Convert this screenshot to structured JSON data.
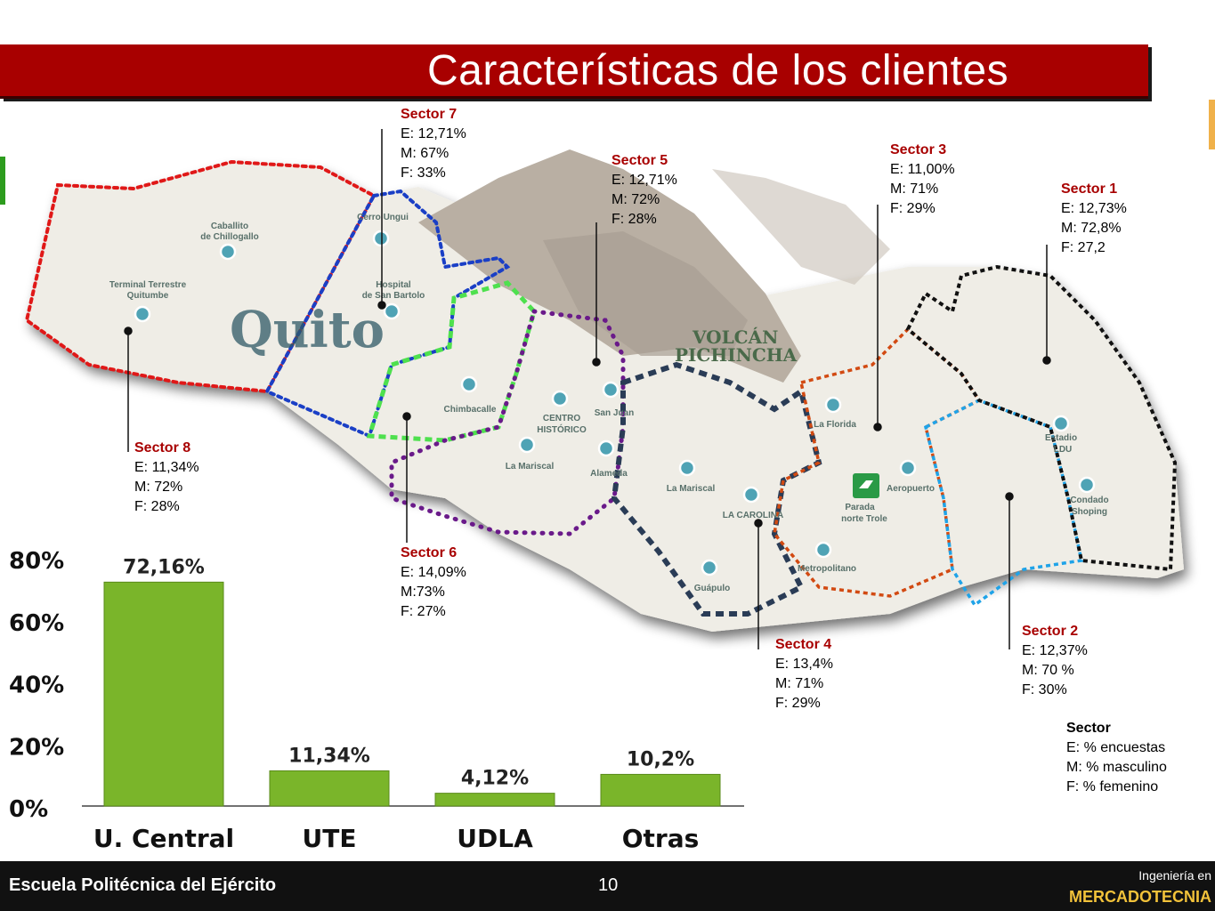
{
  "title": "Características de los clientes",
  "map": {
    "city_label": "Quito",
    "volcano_label_1": "VOLCÁN",
    "volcano_label_2": "PICHINCHA",
    "places": {
      "caballito_1": "Caballito",
      "caballito_2": "de Chillogallo",
      "terminal_1": "Terminal Terrestre",
      "terminal_2": "Quitumbe",
      "cerro_ungui": "Cerro Ungui",
      "hospital_1": "Hospital",
      "hospital_2": "de San Bartolo",
      "chimbacalle": "Chimbacalle",
      "centro_1": "CENTRO",
      "centro_2": "HISTÓRICO",
      "san_juan": "San Juan",
      "la_mariscal_1": "La Mariscal",
      "alameda": "Alameda",
      "la_mariscal_2": "La Mariscal",
      "la_carolina": "LA CAROLINA",
      "guapulo": "Guápulo",
      "la_florida": "La Florida",
      "aeropuerto": "Aeropuerto",
      "parada_1": "Parada",
      "parada_2": "norte Trole",
      "metropolitano": "Metropolitano",
      "estadio_1": "Estadio",
      "estadio_2": "LDU",
      "condado_1": "Condado",
      "condado_2": "Shoping"
    },
    "colors": {
      "sector1": "#111111",
      "sector2": "#1fa3e8",
      "sector3": "#d24a12",
      "sector4": "#2a3c56",
      "sector5": "#6a1a8a",
      "sector6": "#4ee04e",
      "sector7": "#1a3fc6",
      "sector8": "#e01818"
    }
  },
  "sectors": {
    "s1": {
      "name": "Sector 1",
      "e": "E: 12,73%",
      "m": "M: 72,8%",
      "f": "F: 27,2"
    },
    "s2": {
      "name": "Sector 2",
      "e": "E: 12,37%",
      "m": "M: 70 %",
      "f": "F: 30%"
    },
    "s3": {
      "name": "Sector 3",
      "e": "E: 11,00%",
      "m": "M: 71%",
      "f": "F: 29%"
    },
    "s4": {
      "name": "Sector 4",
      "e": "E: 13,4%",
      "m": "M: 71%",
      "f": "F: 29%"
    },
    "s5": {
      "name": "Sector 5",
      "e": "E: 12,71%",
      "m": "M: 72%",
      "f": "F: 28%"
    },
    "s6": {
      "name": "Sector 6",
      "e": "E: 14,09%",
      "m": "M:73%",
      "f": "F: 27%"
    },
    "s7": {
      "name": "Sector 7",
      "e": "E: 12,71%",
      "m": "M: 67%",
      "f": "F: 33%"
    },
    "s8": {
      "name": "Sector 8",
      "e": "E: 11,34%",
      "m": "M: 72%",
      "f": "F: 28%"
    }
  },
  "legend": {
    "title": "Sector",
    "e": "E:  % encuestas",
    "m": "M: % masculino",
    "f": "F:  % femenino"
  },
  "chart_data": {
    "type": "bar",
    "categories": [
      "U. Central",
      "UTE",
      "UDLA",
      "Otras"
    ],
    "values": [
      72.16,
      11.34,
      4.12,
      10.2
    ],
    "value_labels": [
      "72,16%",
      "11,34%",
      "4,12%",
      "10,2%"
    ],
    "y_ticks": [
      0,
      20,
      40,
      60,
      80
    ],
    "y_tick_labels": [
      "0%",
      "20%",
      "40%",
      "60%",
      "80%"
    ],
    "ylim": [
      0,
      80
    ],
    "grid": false,
    "bar_color": "#7ab52a"
  },
  "footer": {
    "school": "Escuela Politécnica del Ejército",
    "page": "10",
    "dept_line1": "Ingeniería en",
    "dept_line2": "MERCADOTECNIA"
  }
}
